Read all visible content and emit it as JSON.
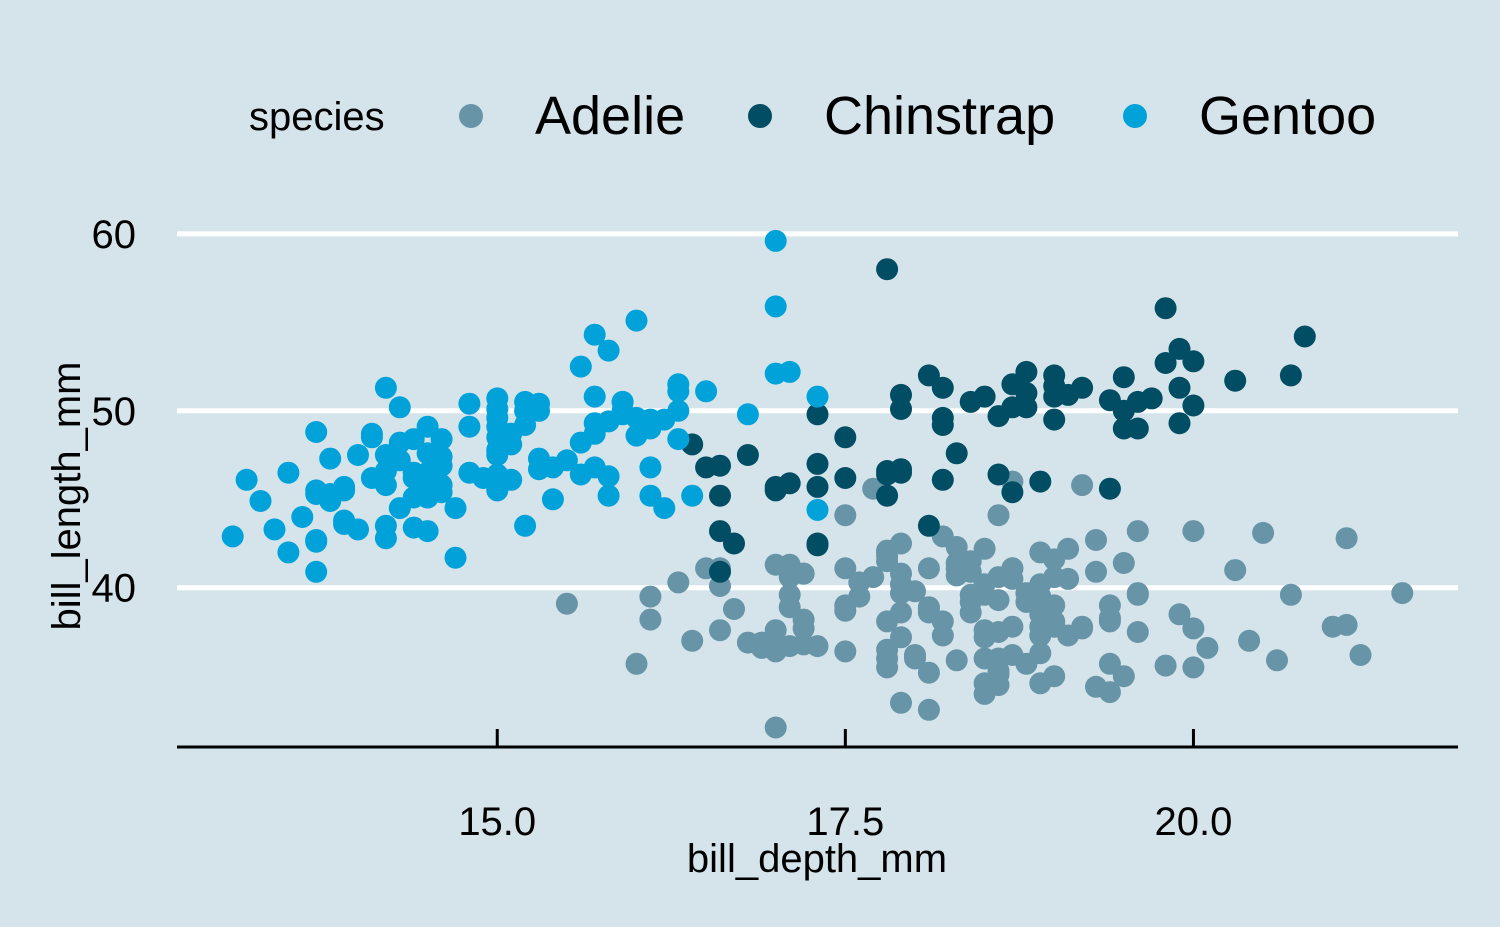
{
  "chart_data": {
    "type": "scatter",
    "title": "",
    "xlabel": "bill_depth_mm",
    "ylabel": "bill_length_mm",
    "xlim": [
      12.7,
      21.9
    ],
    "ylim": [
      31.0,
      60.5
    ],
    "xticks": [
      15.0,
      17.5,
      20.0
    ],
    "xtick_labels": [
      "15.0",
      "17.5",
      "20.0"
    ],
    "yticks": [
      40,
      50,
      60
    ],
    "ytick_labels": [
      "40",
      "50",
      "60"
    ],
    "grid": "horizontal",
    "legend": {
      "title": "species",
      "position": "top",
      "entries": [
        "Adelie",
        "Chinstrap",
        "Gentoo"
      ]
    },
    "colors": {
      "background": "#d5e4eb",
      "gridline": "#ffffff",
      "axis": "#000000"
    },
    "series": [
      {
        "name": "Adelie",
        "color": "#6794a7",
        "x": [
          15.5,
          16.1,
          16.3,
          17.3,
          18.6,
          18.1,
          18.9,
          19.4,
          17.8,
          18.7,
          19.0,
          18.1,
          17.9,
          18.9,
          20.1,
          17.5,
          17.9,
          19.3,
          18.7,
          18.9,
          19.2,
          18.3,
          17.2,
          18.9,
          18.6,
          17.7,
          18.7,
          21.1,
          19.1,
          17.6,
          17.9,
          18.9,
          19.3,
          17.0,
          18.8,
          18.1,
          18.5,
          17.0,
          18.0,
          17.0,
          17.2,
          17.8,
          18.6,
          20.4,
          17.1,
          18.7,
          19.6,
          18.5,
          18.3,
          20.7,
          16.6,
          19.0,
          18.9,
          18.6,
          18.3,
          17.5,
          19.0,
          17.8,
          18.5,
          19.4,
          17.1,
          16.6,
          16.6,
          17.5,
          19.0,
          17.8,
          18.3,
          20.6,
          17.8,
          17.9,
          19.6,
          18.4,
          19.2,
          20.0,
          21.1,
          18.4,
          18.5,
          21.2,
          17.8,
          18.5,
          18.2,
          17.1,
          18.6,
          19.1,
          17.0,
          18.9,
          16.9,
          19.4,
          17.1,
          16.0,
          16.5,
          18.5,
          19.6,
          18.0,
          17.9,
          19.4,
          17.6,
          18.1,
          19.6,
          19.5,
          20.3,
          17.2,
          19.2,
          19.0,
          17.9,
          18.1,
          16.1,
          19.0,
          20.0,
          18.2,
          17.7,
          21.5,
          19.1,
          18.5,
          19.3,
          18.4,
          18.2,
          18.8,
          17.5,
          18.7,
          20.0,
          18.9,
          19.5,
          18.1,
          18.6,
          16.7,
          18.4,
          19.4,
          17.5,
          18.9,
          20.5,
          17.2,
          18.6,
          17.8,
          18.7,
          19.8,
          18.5,
          16.4,
          18.8,
          17.9,
          17.1,
          17.0,
          18.3,
          18.9,
          19.0,
          18.4,
          16.9,
          18.0,
          21.0,
          18.6,
          17.8,
          17.2,
          19.9,
          16.8
        ],
        "y": [
          39.1,
          39.5,
          40.3,
          36.7,
          39.3,
          38.9,
          39.2,
          34.1,
          42.0,
          37.8,
          37.8,
          41.1,
          38.6,
          34.6,
          36.6,
          38.7,
          42.5,
          34.4,
          46.0,
          37.8,
          37.7,
          35.9,
          38.2,
          38.8,
          35.3,
          40.6,
          40.5,
          37.9,
          40.5,
          39.5,
          37.2,
          39.5,
          40.9,
          36.4,
          39.2,
          38.8,
          42.2,
          37.6,
          39.8,
          36.5,
          40.8,
          36.0,
          44.1,
          37.0,
          39.6,
          41.1,
          37.5,
          36.0,
          42.3,
          39.6,
          40.1,
          35.0,
          42.0,
          34.5,
          41.4,
          39.0,
          40.6,
          36.5,
          37.6,
          35.7,
          41.3,
          37.6,
          41.1,
          36.4,
          41.6,
          35.5,
          41.1,
          35.9,
          41.8,
          33.5,
          39.7,
          39.6,
          45.8,
          35.5,
          42.8,
          40.9,
          37.2,
          36.2,
          42.1,
          34.6,
          42.9,
          36.7,
          35.1,
          37.3,
          41.3,
          36.3,
          36.9,
          38.3,
          38.9,
          35.7,
          41.1,
          34.0,
          39.6,
          36.2,
          40.8,
          38.1,
          40.3,
          33.1,
          43.2,
          35.0,
          41.0,
          37.7,
          37.8,
          37.9,
          39.7,
          38.6,
          38.2,
          38.1,
          43.2,
          38.1,
          45.6,
          39.7,
          42.2,
          39.6,
          42.7,
          38.6,
          37.3,
          35.7,
          41.1,
          36.2,
          37.7,
          40.2,
          41.4,
          35.2,
          40.6,
          38.8,
          41.5,
          39.0,
          44.1,
          38.5,
          43.1,
          36.8,
          37.5,
          38.1,
          41.1,
          35.6,
          40.2,
          37.0,
          39.7,
          40.2,
          40.6,
          32.1,
          40.7,
          37.3,
          39.0,
          39.2,
          36.6,
          36.0,
          37.8,
          36.0,
          41.5,
          40.8,
          38.5,
          36.9
        ]
      },
      {
        "name": "Chinstrap",
        "color": "#014d64",
        "x": [
          17.9,
          19.5,
          19.2,
          18.7,
          19.8,
          17.8,
          18.2,
          18.2,
          18.9,
          19.9,
          17.8,
          20.3,
          17.3,
          18.1,
          17.1,
          19.6,
          20.0,
          17.8,
          18.6,
          18.2,
          17.3,
          17.5,
          16.6,
          19.4,
          17.9,
          19.0,
          18.4,
          19.0,
          17.8,
          20.0,
          16.6,
          20.8,
          16.7,
          18.8,
          18.6,
          16.8,
          18.3,
          20.7,
          16.6,
          19.9,
          19.5,
          17.5,
          19.1,
          17.0,
          17.9,
          18.5,
          17.9,
          19.6,
          18.7,
          17.3,
          16.4,
          19.0,
          17.3,
          19.7,
          17.3,
          18.8,
          16.6,
          19.9,
          18.8,
          19.4,
          19.5,
          16.5,
          17.0,
          19.8,
          18.1,
          18.2,
          19.0,
          18.7
        ],
        "y": [
          46.5,
          50.0,
          51.3,
          45.4,
          52.7,
          45.2,
          46.1,
          51.3,
          46.0,
          51.3,
          46.6,
          51.7,
          47.0,
          52.0,
          45.9,
          50.5,
          50.3,
          58.0,
          46.4,
          49.2,
          42.4,
          48.5,
          43.2,
          50.6,
          46.7,
          52.0,
          50.5,
          49.5,
          46.4,
          52.8,
          40.9,
          54.2,
          42.5,
          51.0,
          49.7,
          47.5,
          47.6,
          52.0,
          46.9,
          53.5,
          49.0,
          46.2,
          50.9,
          45.5,
          50.9,
          50.8,
          50.1,
          49.0,
          51.5,
          49.8,
          48.1,
          51.4,
          45.7,
          50.7,
          42.5,
          52.2,
          45.2,
          49.3,
          50.2,
          45.6,
          51.9,
          46.8,
          45.7,
          55.8,
          43.5,
          49.6,
          50.8,
          50.2
        ]
      },
      {
        "name": "Gentoo",
        "color": "#00a2d9",
        "x": [
          13.2,
          16.3,
          14.1,
          15.2,
          14.5,
          13.5,
          14.6,
          15.3,
          13.4,
          15.4,
          13.7,
          16.1,
          13.7,
          14.6,
          14.6,
          15.7,
          13.5,
          15.2,
          14.5,
          15.1,
          14.3,
          14.5,
          14.5,
          15.8,
          13.1,
          15.1,
          14.3,
          15.0,
          14.3,
          15.3,
          15.3,
          14.2,
          14.5,
          17.0,
          14.8,
          16.3,
          13.7,
          17.3,
          13.6,
          15.7,
          13.7,
          16.0,
          13.7,
          15.0,
          15.9,
          13.9,
          13.9,
          15.9,
          13.3,
          15.8,
          14.2,
          14.1,
          14.4,
          15.0,
          14.4,
          15.4,
          13.9,
          15.0,
          14.5,
          15.3,
          13.8,
          14.9,
          13.9,
          15.7,
          14.2,
          16.8,
          14.4,
          16.2,
          14.2,
          15.0,
          15.0,
          15.6,
          15.6,
          14.8,
          15.0,
          16.0,
          14.2,
          16.3,
          13.8,
          16.4,
          14.5,
          15.6,
          14.6,
          15.9,
          13.8,
          17.3,
          14.4,
          14.2,
          14.0,
          17.0,
          15.0,
          17.1,
          14.5,
          16.1,
          14.7,
          15.7,
          15.8,
          14.6,
          14.4,
          16.5,
          15.0,
          17.0,
          15.5,
          15.0,
          13.8,
          16.1,
          14.7,
          15.8,
          14.0,
          15.1,
          15.2,
          15.9,
          15.2,
          16.3,
          14.1,
          16.0,
          16.2,
          13.7,
          14.3,
          15.7,
          14.8,
          16.1
        ],
        "y": [
          46.1,
          50.0,
          48.7,
          50.0,
          47.6,
          46.5,
          45.4,
          46.7,
          43.3,
          46.8,
          40.9,
          49.0,
          45.5,
          48.4,
          45.8,
          49.3,
          42.0,
          49.2,
          46.2,
          48.7,
          50.2,
          45.1,
          46.5,
          46.3,
          42.9,
          46.1,
          44.5,
          47.8,
          48.2,
          50.0,
          47.3,
          42.8,
          45.1,
          59.6,
          49.1,
          48.4,
          42.6,
          44.4,
          44.0,
          48.7,
          42.7,
          49.6,
          45.3,
          49.6,
          50.5,
          43.6,
          45.5,
          50.5,
          44.9,
          45.2,
          46.6,
          48.5,
          45.1,
          50.1,
          46.5,
          45.0,
          43.8,
          45.5,
          43.2,
          50.4,
          45.3,
          46.2,
          45.7,
          54.3,
          45.8,
          49.8,
          46.2,
          49.5,
          43.5,
          50.7,
          47.7,
          46.4,
          48.2,
          46.5,
          46.4,
          48.6,
          47.5,
          51.1,
          45.2,
          45.2,
          49.1,
          52.5,
          47.4,
          50.0,
          44.9,
          50.8,
          43.4,
          51.3,
          47.5,
          52.1,
          47.5,
          52.2,
          45.5,
          49.5,
          44.5,
          50.8,
          49.4,
          46.9,
          48.4,
          51.1,
          48.5,
          55.9,
          47.2,
          49.1,
          47.3,
          46.8,
          41.7,
          53.4,
          43.3,
          48.1,
          50.5,
          49.8,
          43.5,
          51.5,
          46.2,
          55.1,
          44.5,
          48.8,
          47.2,
          46.8,
          50.4,
          45.2
        ]
      }
    ]
  }
}
